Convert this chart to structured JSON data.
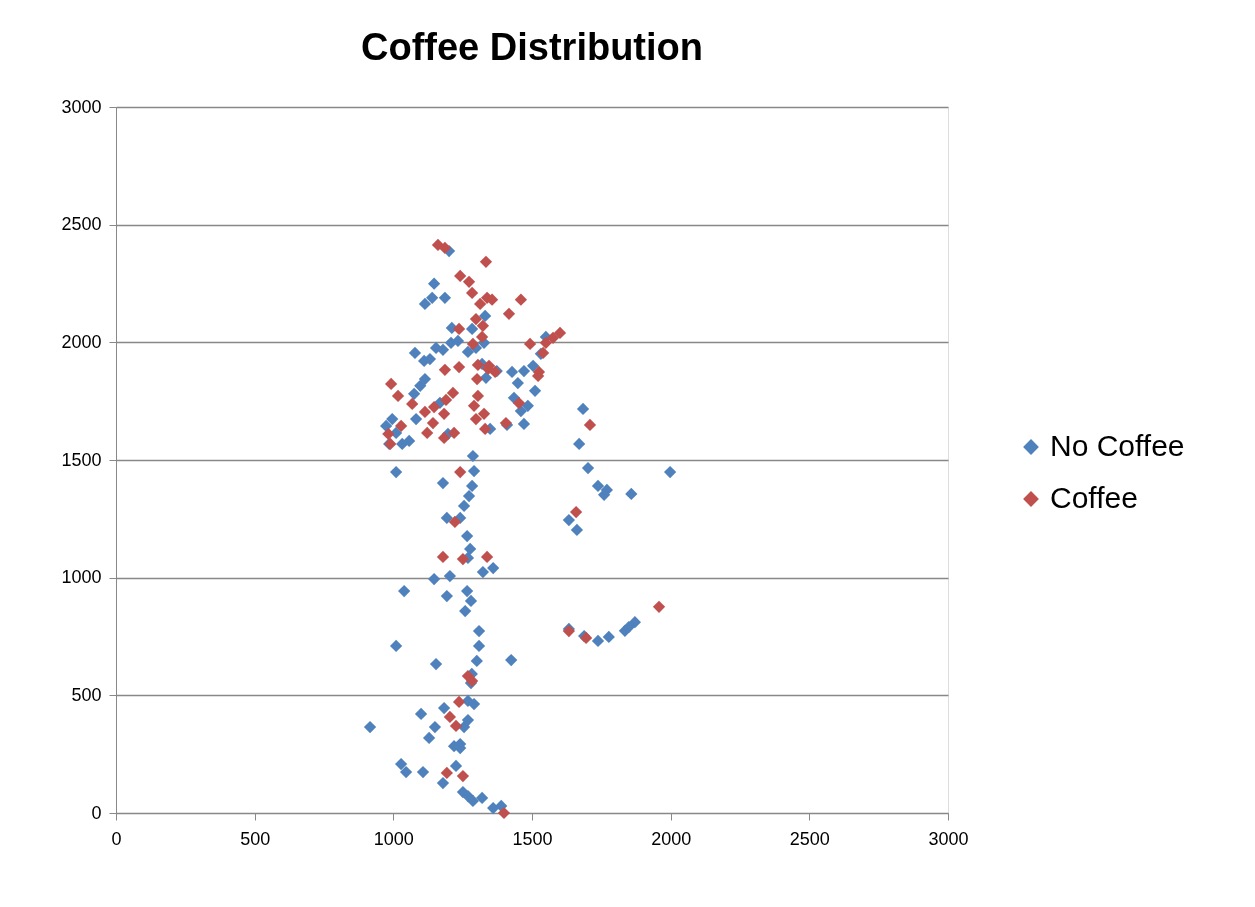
{
  "chart_data": {
    "type": "scatter",
    "title": "Coffee Distribution",
    "xlim": [
      0,
      3000
    ],
    "ylim": [
      0,
      3000
    ],
    "xticks": [
      0,
      500,
      1000,
      1500,
      2000,
      2500,
      3000
    ],
    "yticks": [
      0,
      500,
      1000,
      1500,
      2000,
      2500,
      3000
    ],
    "grid": "y",
    "legend": "right",
    "marker": "diamond",
    "series": [
      {
        "name": "No Coffee",
        "color": "#4f81bd",
        "x": [
          916,
          1028,
          1046,
          1107,
          1179,
          1129,
          1150,
          1100,
          1183,
          1154,
          1010,
          1039,
          1147,
          1193,
          1204,
          1241,
          1255,
          1269,
          1269,
          1280,
          1283,
          1301,
          1309,
          1291,
          1241,
          1226,
          1251,
          1269,
          1287,
          1320,
          1360,
          1389,
          1425,
          1266,
          1280,
          1259,
          1309,
          1323,
          1360,
          1269,
          1277,
          1266,
          1241,
          1255,
          1273,
          1284,
          1291,
          1287,
          1193,
          1179,
          1010,
          985,
          974,
          996,
          1010,
          1032,
          1057,
          1075,
          1097,
          1114,
          1111,
          1078,
          1132,
          1154,
          1179,
          1208,
          1233,
          1211,
          1269,
          1298,
          1320,
          1334,
          1327,
          1284,
          1114,
          1140,
          1147,
          1186,
          1201,
          1331,
          1197,
          1349,
          1373,
          1428,
          1471,
          1449,
          1435,
          1460,
          1485,
          1511,
          1471,
          1504,
          1532,
          1550,
          1410,
          1670,
          1684,
          1702,
          1738,
          1760,
          1770,
          1858,
          1998,
          1633,
          1662,
          1738,
          1777,
          1835,
          1871,
          1849,
          1633,
          1688,
          1219,
          1168,
          1082
        ],
        "values": [
          365,
          208,
          174,
          174,
          127,
          319,
          365,
          421,
          446,
          633,
          710,
          943,
          994,
          922,
          1007,
          293,
          365,
          395,
          476,
          552,
          591,
          646,
          710,
          463,
          276,
          200,
          89,
          72,
          51,
          64,
          21,
          30,
          650,
          943,
          901,
          858,
          773,
          1024,
          1041,
          1084,
          1122,
          1177,
          1254,
          1305,
          1347,
          1390,
          1453,
          1517,
          1254,
          1402,
          1449,
          1568,
          1645,
          1674,
          1615,
          1568,
          1581,
          1781,
          1815,
          1844,
          1921,
          1955,
          1929,
          1976,
          1968,
          1998,
          2006,
          2061,
          1959,
          1976,
          1908,
          1849,
          1998,
          2057,
          2163,
          2189,
          2249,
          2189,
          2388,
          2112,
          1611,
          1632,
          1878,
          1874,
          1878,
          1827,
          1764,
          1708,
          1730,
          1794,
          1653,
          1900,
          1951,
          2023,
          1649,
          1568,
          1717,
          1466,
          1390,
          1352,
          1373,
          1356,
          1449,
          1245,
          1203,
          731,
          748,
          774,
          811,
          790,
          782,
          752,
          284,
          1743,
          1674
        ]
      },
      {
        "name": "Coffee",
        "color": "#c0504d",
        "x": [
          1161,
          1186,
          1334,
          1241,
          1273,
          1284,
          1313,
          1338,
          1356,
          1460,
          1417,
          1298,
          1323,
          1237,
          1320,
          1287,
          1305,
          1237,
          1186,
          1342,
          1367,
          1345,
          1302,
          992,
          1017,
          1068,
          1114,
          1147,
          1190,
          1215,
          1183,
          1143,
          1122,
          1183,
          1219,
          1028,
          982,
          989,
          1298,
          1327,
          1305,
          1291,
          1331,
          1406,
          1453,
          1493,
          1550,
          1540,
          1522,
          1601,
          1576,
          1525,
          1709,
          1659,
          1241,
          1222,
          1179,
          1251,
          1338,
          1958,
          1633,
          1695,
          1269,
          1284,
          1237,
          1204,
          1226,
          1193,
          1251,
          1399
        ],
        "values": [
          2414,
          2401,
          2342,
          2282,
          2257,
          2210,
          2163,
          2189,
          2181,
          2181,
          2121,
          2099,
          2070,
          2057,
          2023,
          1993,
          1904,
          1895,
          1883,
          1887,
          1874,
          1900,
          1844,
          1823,
          1772,
          1738,
          1704,
          1725,
          1755,
          1785,
          1696,
          1657,
          1615,
          1594,
          1615,
          1645,
          1611,
          1568,
          1674,
          1696,
          1772,
          1730,
          1632,
          1657,
          1742,
          1993,
          1998,
          1955,
          1857,
          2040,
          2019,
          1874,
          1649,
          1279,
          1449,
          1237,
          1088,
          1079,
          1088,
          876,
          773,
          744,
          582,
          561,
          472,
          408,
          370,
          170,
          157,
          0
        ]
      }
    ]
  }
}
